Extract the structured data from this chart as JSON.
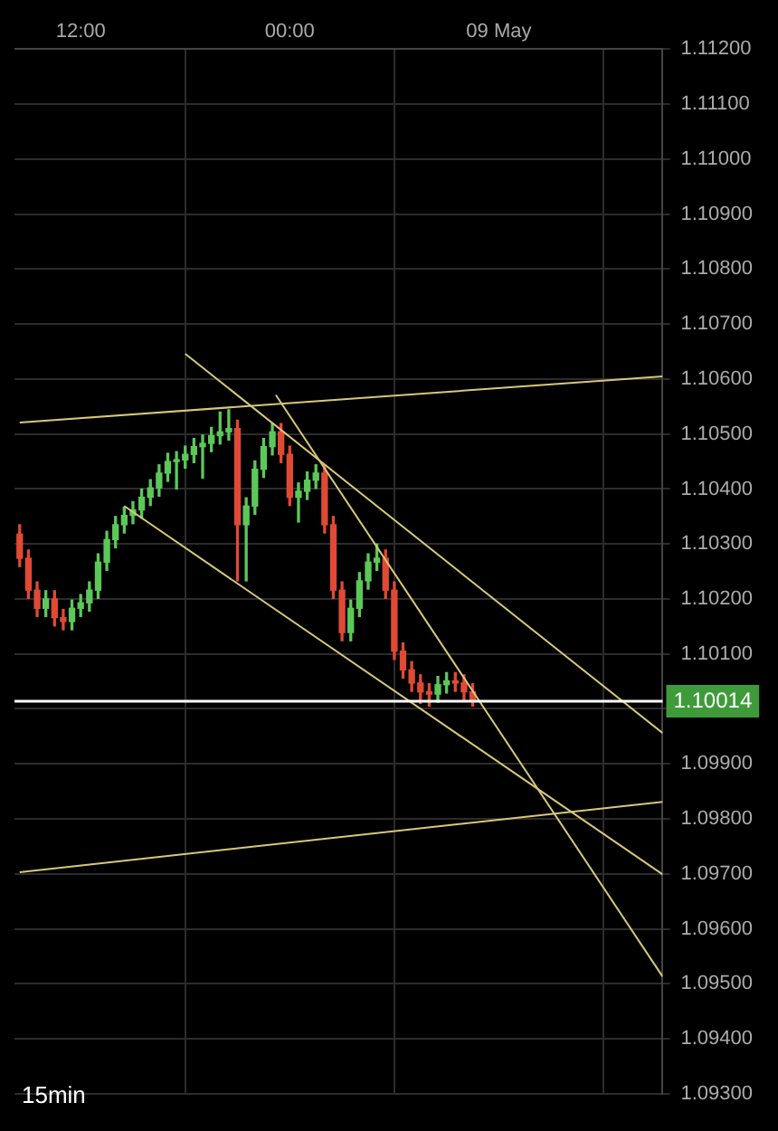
{
  "chart_data": {
    "type": "candlestick",
    "x": [
      8.5,
      9,
      9.5,
      10,
      10.5,
      11,
      11.5,
      12,
      12.5,
      13,
      13.5,
      14,
      14.5,
      15,
      15.5,
      16,
      16.5,
      17,
      17.5,
      18,
      18.5,
      19,
      19.5,
      20,
      20.5,
      21,
      21.5,
      22,
      22.5,
      23,
      23.5,
      24,
      24.5,
      25,
      25.5,
      26,
      26.5,
      27,
      27.5,
      28,
      28.5,
      29,
      29.5,
      30,
      30.5,
      31,
      31.5,
      32,
      32.5,
      33,
      33.5,
      34,
      34.5
    ],
    "ohlc": [
      [
        1.10318,
        1.10335,
        1.10259,
        1.10274
      ],
      [
        1.10274,
        1.10289,
        1.10201,
        1.10216
      ],
      [
        1.10216,
        1.10231,
        1.10168,
        1.10183
      ],
      [
        1.10183,
        1.10215,
        1.10168,
        1.102
      ],
      [
        1.102,
        1.10215,
        1.10151,
        1.10166
      ],
      [
        1.10166,
        1.10181,
        1.10144,
        1.10159
      ],
      [
        1.10159,
        1.10198,
        1.10144,
        1.10183
      ],
      [
        1.10183,
        1.10208,
        1.10168,
        1.10193
      ],
      [
        1.10193,
        1.10231,
        1.10178,
        1.10216
      ],
      [
        1.10216,
        1.10282,
        1.10201,
        1.10267
      ],
      [
        1.10267,
        1.10323,
        1.10252,
        1.10308
      ],
      [
        1.10308,
        1.1035,
        1.10293,
        1.10335
      ],
      [
        1.10335,
        1.10367,
        1.1032,
        1.10352
      ],
      [
        1.10352,
        1.10377,
        1.10337,
        1.10362
      ],
      [
        1.10362,
        1.104,
        1.10347,
        1.10385
      ],
      [
        1.10385,
        1.10417,
        1.1037,
        1.10402
      ],
      [
        1.10402,
        1.10444,
        1.10387,
        1.10429
      ],
      [
        1.10429,
        1.10465,
        1.10414,
        1.1045
      ],
      [
        1.1045,
        1.10468,
        1.104,
        1.10453
      ],
      [
        1.10453,
        1.10478,
        1.10438,
        1.10463
      ],
      [
        1.10463,
        1.10492,
        1.10448,
        1.10477
      ],
      [
        1.10477,
        1.10498,
        1.1042,
        1.10483
      ],
      [
        1.10483,
        1.10512,
        1.10468,
        1.10497
      ],
      [
        1.10497,
        1.1054,
        1.10482,
        1.10504
      ],
      [
        1.10504,
        1.10544,
        1.10489,
        1.1051
      ],
      [
        1.1051,
        1.10525,
        1.10233,
        1.10335
      ],
      [
        1.10335,
        1.10384,
        1.10233,
        1.10369
      ],
      [
        1.10369,
        1.10451,
        1.10354,
        1.10436
      ],
      [
        1.10436,
        1.10492,
        1.10421,
        1.10477
      ],
      [
        1.10477,
        1.10519,
        1.10462,
        1.10504
      ],
      [
        1.10504,
        1.10519,
        1.10448,
        1.10463
      ],
      [
        1.10463,
        1.10478,
        1.1037,
        1.10385
      ],
      [
        1.10385,
        1.10411,
        1.1034,
        1.10396
      ],
      [
        1.10396,
        1.10431,
        1.10381,
        1.10416
      ],
      [
        1.10416,
        1.10444,
        1.10401,
        1.10429
      ],
      [
        1.10429,
        1.10444,
        1.1032,
        1.10335
      ],
      [
        1.10335,
        1.1035,
        1.10201,
        1.10216
      ],
      [
        1.10216,
        1.10231,
        1.10124,
        1.10139
      ],
      [
        1.10139,
        1.10198,
        1.10124,
        1.10183
      ],
      [
        1.10183,
        1.10248,
        1.10168,
        1.10233
      ],
      [
        1.10233,
        1.10282,
        1.10218,
        1.10267
      ],
      [
        1.10267,
        1.103,
        1.10252,
        1.10274
      ],
      [
        1.10274,
        1.10289,
        1.10201,
        1.10216
      ],
      [
        1.10216,
        1.10231,
        1.1009,
        1.10105
      ],
      [
        1.10105,
        1.1012,
        1.10056,
        1.10071
      ],
      [
        1.10071,
        1.10086,
        1.10032,
        1.10047
      ],
      [
        1.10047,
        1.10062,
        1.1001,
        1.10031
      ],
      [
        1.10031,
        1.10046,
        1.10005,
        1.10027
      ],
      [
        1.10027,
        1.10059,
        1.10012,
        1.10044
      ],
      [
        1.10044,
        1.10066,
        1.10029,
        1.10051
      ],
      [
        1.10051,
        1.10066,
        1.10032,
        1.10047
      ],
      [
        1.10047,
        1.10062,
        1.10016,
        1.10031
      ],
      [
        1.10031,
        1.10046,
        1.10005,
        1.10014
      ]
    ],
    "colors": [
      "#e04a35",
      "#e04a35",
      "#e04a35",
      "#5cc85a",
      "#e04a35",
      "#e04a35",
      "#5cc85a",
      "#5cc85a",
      "#5cc85a",
      "#5cc85a",
      "#5cc85a",
      "#5cc85a",
      "#5cc85a",
      "#5cc85a",
      "#5cc85a",
      "#5cc85a",
      "#5cc85a",
      "#5cc85a",
      "#5cc85a",
      "#5cc85a",
      "#5cc85a",
      "#5cc85a",
      "#5cc85a",
      "#5cc85a",
      "#5cc85a",
      "#e04a35",
      "#5cc85a",
      "#5cc85a",
      "#5cc85a",
      "#5cc85a",
      "#e04a35",
      "#e04a35",
      "#5cc85a",
      "#5cc85a",
      "#5cc85a",
      "#e04a35",
      "#e04a35",
      "#e04a35",
      "#5cc85a",
      "#5cc85a",
      "#5cc85a",
      "#5cc85a",
      "#e04a35",
      "#e04a35",
      "#e04a35",
      "#e04a35",
      "#e04a35",
      "#e04a35",
      "#5cc85a",
      "#5cc85a",
      "#e04a35",
      "#e04a35",
      "#e04a35"
    ],
    "series": [
      {
        "type": "line",
        "color": "#d8c878",
        "x": [
          8.5,
          45.4
        ],
        "values": [
          1.10521,
          1.10605
        ]
      },
      {
        "type": "line",
        "color": "#d8c878",
        "x": [
          8.5,
          45.4
        ],
        "values": [
          1.09703,
          1.09831
        ]
      },
      {
        "type": "line",
        "color": "#d8c878",
        "x": [
          14.5,
          45.4
        ],
        "values": [
          1.10369,
          1.09699
        ]
      },
      {
        "type": "line",
        "color": "#d8c878",
        "x": [
          18,
          45.4
        ],
        "values": [
          1.10646,
          1.09956
        ]
      },
      {
        "type": "line",
        "color": "#d8c878",
        "x": [
          23.2,
          45.4
        ],
        "values": [
          1.10571,
          1.09513
        ]
      }
    ],
    "xlim": [
      8.2,
      45.4
    ],
    "xticks": [
      {
        "value": 12,
        "label": "12:00"
      },
      {
        "value": 24,
        "label": "00:00"
      },
      {
        "value": 36,
        "label": "09 May"
      }
    ],
    "ylim": [
      1.093,
      1.112
    ],
    "yticks": [
      {
        "value": 1.093,
        "label": "1.09300"
      },
      {
        "value": 1.094,
        "label": "1.09400"
      },
      {
        "value": 1.095,
        "label": "1.09500"
      },
      {
        "value": 1.096,
        "label": "1.09600"
      },
      {
        "value": 1.097,
        "label": "1.09700"
      },
      {
        "value": 1.098,
        "label": "1.09800"
      },
      {
        "value": 1.099,
        "label": "1.09900"
      },
      {
        "value": 1.1,
        "label": null
      },
      {
        "value": 1.101,
        "label": "1.10100"
      },
      {
        "value": 1.102,
        "label": "1.10200"
      },
      {
        "value": 1.103,
        "label": "1.10300"
      },
      {
        "value": 1.104,
        "label": "1.10400"
      },
      {
        "value": 1.105,
        "label": "1.10500"
      },
      {
        "value": 1.106,
        "label": "1.10600"
      },
      {
        "value": 1.107,
        "label": "1.10700"
      },
      {
        "value": 1.108,
        "label": "1.10800"
      },
      {
        "value": 1.109,
        "label": "1.10900"
      },
      {
        "value": 1.11,
        "label": "1.11000"
      },
      {
        "value": 1.111,
        "label": "1.11100"
      },
      {
        "value": 1.112,
        "label": "1.11200"
      }
    ],
    "ref_lines": [
      {
        "axis": "y",
        "value": 1.10014,
        "label": "1.10014",
        "color": "#ffffff"
      }
    ],
    "annotations": [
      "15min"
    ],
    "grid": true,
    "legend": false
  }
}
